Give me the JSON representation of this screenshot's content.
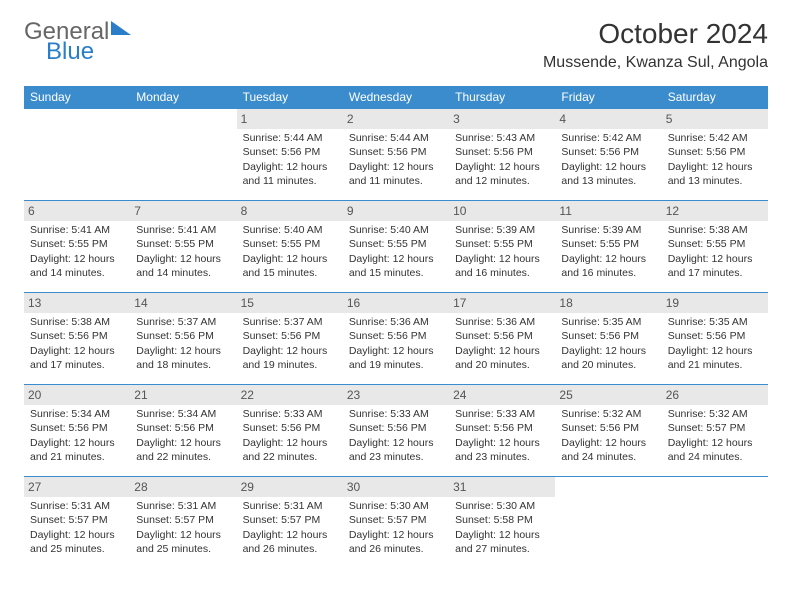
{
  "logo": {
    "part1": "General",
    "part2": "Blue"
  },
  "header": {
    "title": "October 2024",
    "location": "Mussende, Kwanza Sul, Angola"
  },
  "colors": {
    "header_bg": "#3b8ccc",
    "header_text": "#ffffff",
    "daynum_bg": "#e8e8e8",
    "border": "#3b8ccc",
    "body_text": "#333333"
  },
  "days_of_week": [
    "Sunday",
    "Monday",
    "Tuesday",
    "Wednesday",
    "Thursday",
    "Friday",
    "Saturday"
  ],
  "weeks": [
    [
      null,
      null,
      {
        "n": "1",
        "sunrise": "Sunrise: 5:44 AM",
        "sunset": "Sunset: 5:56 PM",
        "daylight": "Daylight: 12 hours and 11 minutes."
      },
      {
        "n": "2",
        "sunrise": "Sunrise: 5:44 AM",
        "sunset": "Sunset: 5:56 PM",
        "daylight": "Daylight: 12 hours and 11 minutes."
      },
      {
        "n": "3",
        "sunrise": "Sunrise: 5:43 AM",
        "sunset": "Sunset: 5:56 PM",
        "daylight": "Daylight: 12 hours and 12 minutes."
      },
      {
        "n": "4",
        "sunrise": "Sunrise: 5:42 AM",
        "sunset": "Sunset: 5:56 PM",
        "daylight": "Daylight: 12 hours and 13 minutes."
      },
      {
        "n": "5",
        "sunrise": "Sunrise: 5:42 AM",
        "sunset": "Sunset: 5:56 PM",
        "daylight": "Daylight: 12 hours and 13 minutes."
      }
    ],
    [
      {
        "n": "6",
        "sunrise": "Sunrise: 5:41 AM",
        "sunset": "Sunset: 5:55 PM",
        "daylight": "Daylight: 12 hours and 14 minutes."
      },
      {
        "n": "7",
        "sunrise": "Sunrise: 5:41 AM",
        "sunset": "Sunset: 5:55 PM",
        "daylight": "Daylight: 12 hours and 14 minutes."
      },
      {
        "n": "8",
        "sunrise": "Sunrise: 5:40 AM",
        "sunset": "Sunset: 5:55 PM",
        "daylight": "Daylight: 12 hours and 15 minutes."
      },
      {
        "n": "9",
        "sunrise": "Sunrise: 5:40 AM",
        "sunset": "Sunset: 5:55 PM",
        "daylight": "Daylight: 12 hours and 15 minutes."
      },
      {
        "n": "10",
        "sunrise": "Sunrise: 5:39 AM",
        "sunset": "Sunset: 5:55 PM",
        "daylight": "Daylight: 12 hours and 16 minutes."
      },
      {
        "n": "11",
        "sunrise": "Sunrise: 5:39 AM",
        "sunset": "Sunset: 5:55 PM",
        "daylight": "Daylight: 12 hours and 16 minutes."
      },
      {
        "n": "12",
        "sunrise": "Sunrise: 5:38 AM",
        "sunset": "Sunset: 5:55 PM",
        "daylight": "Daylight: 12 hours and 17 minutes."
      }
    ],
    [
      {
        "n": "13",
        "sunrise": "Sunrise: 5:38 AM",
        "sunset": "Sunset: 5:56 PM",
        "daylight": "Daylight: 12 hours and 17 minutes."
      },
      {
        "n": "14",
        "sunrise": "Sunrise: 5:37 AM",
        "sunset": "Sunset: 5:56 PM",
        "daylight": "Daylight: 12 hours and 18 minutes."
      },
      {
        "n": "15",
        "sunrise": "Sunrise: 5:37 AM",
        "sunset": "Sunset: 5:56 PM",
        "daylight": "Daylight: 12 hours and 19 minutes."
      },
      {
        "n": "16",
        "sunrise": "Sunrise: 5:36 AM",
        "sunset": "Sunset: 5:56 PM",
        "daylight": "Daylight: 12 hours and 19 minutes."
      },
      {
        "n": "17",
        "sunrise": "Sunrise: 5:36 AM",
        "sunset": "Sunset: 5:56 PM",
        "daylight": "Daylight: 12 hours and 20 minutes."
      },
      {
        "n": "18",
        "sunrise": "Sunrise: 5:35 AM",
        "sunset": "Sunset: 5:56 PM",
        "daylight": "Daylight: 12 hours and 20 minutes."
      },
      {
        "n": "19",
        "sunrise": "Sunrise: 5:35 AM",
        "sunset": "Sunset: 5:56 PM",
        "daylight": "Daylight: 12 hours and 21 minutes."
      }
    ],
    [
      {
        "n": "20",
        "sunrise": "Sunrise: 5:34 AM",
        "sunset": "Sunset: 5:56 PM",
        "daylight": "Daylight: 12 hours and 21 minutes."
      },
      {
        "n": "21",
        "sunrise": "Sunrise: 5:34 AM",
        "sunset": "Sunset: 5:56 PM",
        "daylight": "Daylight: 12 hours and 22 minutes."
      },
      {
        "n": "22",
        "sunrise": "Sunrise: 5:33 AM",
        "sunset": "Sunset: 5:56 PM",
        "daylight": "Daylight: 12 hours and 22 minutes."
      },
      {
        "n": "23",
        "sunrise": "Sunrise: 5:33 AM",
        "sunset": "Sunset: 5:56 PM",
        "daylight": "Daylight: 12 hours and 23 minutes."
      },
      {
        "n": "24",
        "sunrise": "Sunrise: 5:33 AM",
        "sunset": "Sunset: 5:56 PM",
        "daylight": "Daylight: 12 hours and 23 minutes."
      },
      {
        "n": "25",
        "sunrise": "Sunrise: 5:32 AM",
        "sunset": "Sunset: 5:56 PM",
        "daylight": "Daylight: 12 hours and 24 minutes."
      },
      {
        "n": "26",
        "sunrise": "Sunrise: 5:32 AM",
        "sunset": "Sunset: 5:57 PM",
        "daylight": "Daylight: 12 hours and 24 minutes."
      }
    ],
    [
      {
        "n": "27",
        "sunrise": "Sunrise: 5:31 AM",
        "sunset": "Sunset: 5:57 PM",
        "daylight": "Daylight: 12 hours and 25 minutes."
      },
      {
        "n": "28",
        "sunrise": "Sunrise: 5:31 AM",
        "sunset": "Sunset: 5:57 PM",
        "daylight": "Daylight: 12 hours and 25 minutes."
      },
      {
        "n": "29",
        "sunrise": "Sunrise: 5:31 AM",
        "sunset": "Sunset: 5:57 PM",
        "daylight": "Daylight: 12 hours and 26 minutes."
      },
      {
        "n": "30",
        "sunrise": "Sunrise: 5:30 AM",
        "sunset": "Sunset: 5:57 PM",
        "daylight": "Daylight: 12 hours and 26 minutes."
      },
      {
        "n": "31",
        "sunrise": "Sunrise: 5:30 AM",
        "sunset": "Sunset: 5:58 PM",
        "daylight": "Daylight: 12 hours and 27 minutes."
      },
      null,
      null
    ]
  ]
}
